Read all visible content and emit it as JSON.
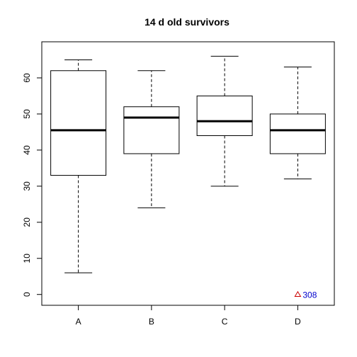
{
  "chart_data": {
    "type": "box",
    "title": "14 d old survivors",
    "xlabel": "",
    "ylabel": "",
    "ylim": [
      -3,
      70
    ],
    "yticks": [
      0,
      10,
      20,
      30,
      40,
      50,
      60
    ],
    "categories": [
      "A",
      "B",
      "C",
      "D"
    ],
    "boxes": [
      {
        "category": "A",
        "whisker_low": 6,
        "q1": 33,
        "median": 45.5,
        "q3": 62,
        "whisker_high": 65
      },
      {
        "category": "B",
        "whisker_low": 24,
        "q1": 39,
        "median": 49,
        "q3": 52,
        "whisker_high": 62
      },
      {
        "category": "C",
        "whisker_low": 30,
        "q1": 44,
        "median": 48,
        "q3": 55,
        "whisker_high": 66
      },
      {
        "category": "D",
        "whisker_low": 32,
        "q1": 39,
        "median": 45.5,
        "q3": 50,
        "whisker_high": 63
      }
    ],
    "outliers": [
      {
        "category": "D",
        "value": 0,
        "label": "308",
        "marker": "triangle",
        "marker_color": "#cc0000",
        "label_color": "#0000cc"
      }
    ],
    "grid": false,
    "legend": "none"
  }
}
